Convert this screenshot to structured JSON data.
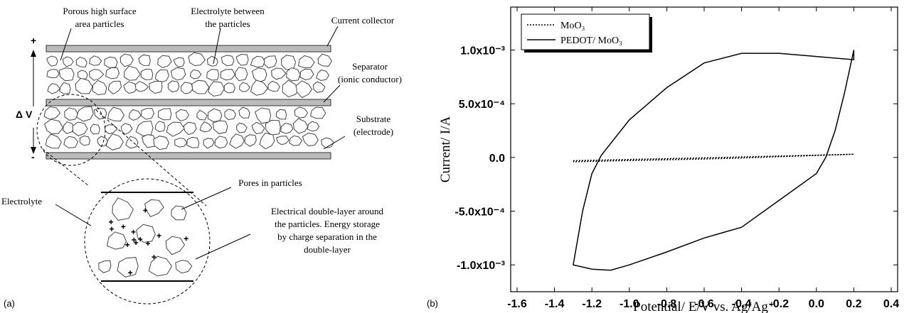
{
  "diagram": {
    "labels": [
      {
        "lines": [
          "Porous high surface",
          "area particles"
        ]
      },
      {
        "lines": [
          "Electrolyte between",
          "the particles"
        ]
      },
      {
        "lines": [
          "Current collector"
        ]
      },
      {
        "lines": [
          "Separator",
          "(ionic conductor)"
        ]
      },
      {
        "lines": [
          "Substrate",
          "(electrode)"
        ]
      },
      {
        "lines": [
          "Δ V"
        ]
      },
      {
        "lines": [
          "+"
        ]
      },
      {
        "lines": [
          "-"
        ]
      },
      {
        "lines": [
          "Electrolyte"
        ]
      },
      {
        "lines": [
          "Pores in particles"
        ]
      },
      {
        "lines": [
          "Electrical double-layer around",
          "the particles. Energy storage",
          "by charge separation in the",
          "double-layer"
        ]
      }
    ],
    "panel_label": "(a)"
  },
  "chart_panel_label": "(b)",
  "chart_data": {
    "type": "line",
    "x_label": "Potential/ E/V vs. Ag/Ag⁺",
    "y_label": "Current/ I/A",
    "xlim": [
      -1.6,
      0.4
    ],
    "xticks": [
      -1.6,
      -1.4,
      -1.2,
      {
        "value": -1,
        "label": "-1.0"
      },
      -0.8,
      -0.6,
      -0.4,
      -0.2,
      {
        "value": 0,
        "label": "0.0"
      },
      0.2,
      0.4
    ],
    "ylim": [
      -0.00125,
      0.0014
    ],
    "yticks": [
      {
        "value": -0.001,
        "label": "-1.0x10⁻³"
      },
      {
        "value": -0.0005,
        "label": "-5.0x10⁻⁴"
      },
      {
        "value": 0,
        "label": "0.0"
      },
      {
        "value": 0.0005,
        "label": "5.0x10⁻⁴"
      },
      {
        "value": 0.001,
        "label": "1.0x10⁻³"
      }
    ],
    "legend": "top-left",
    "series": [
      {
        "name": "MoO₃",
        "color": "#000000",
        "dash": "dotted",
        "x": [
          -1.3,
          -0.5,
          0.2,
          -0.5,
          -1.3
        ],
        "values": [
          -3e-05,
          0.0,
          3e-05,
          -1e-05,
          -4e-05
        ]
      },
      {
        "name": "PEDOT/ MoO₃",
        "color": "#000000",
        "dash": "solid",
        "x": [
          0.2,
          0.15,
          0.1,
          0.05,
          0.0,
          -0.2,
          -0.4,
          -0.6,
          -0.8,
          -1.0,
          -1.1,
          -1.2,
          -1.3,
          -1.25,
          -1.2,
          -1.15,
          -1.0,
          -0.8,
          -0.6,
          -0.4,
          -0.2,
          0.0,
          0.2,
          0.2
        ],
        "values": [
          0.001,
          0.0006,
          0.00025,
          0.0,
          -0.00015,
          -0.0004,
          -0.00065,
          -0.00075,
          -0.00088,
          -0.001,
          -0.00105,
          -0.00104,
          -0.001,
          -0.0005,
          -0.00015,
          2e-05,
          0.00035,
          0.00065,
          0.00088,
          0.00097,
          0.00097,
          0.00094,
          0.00091,
          0.001
        ]
      }
    ]
  }
}
